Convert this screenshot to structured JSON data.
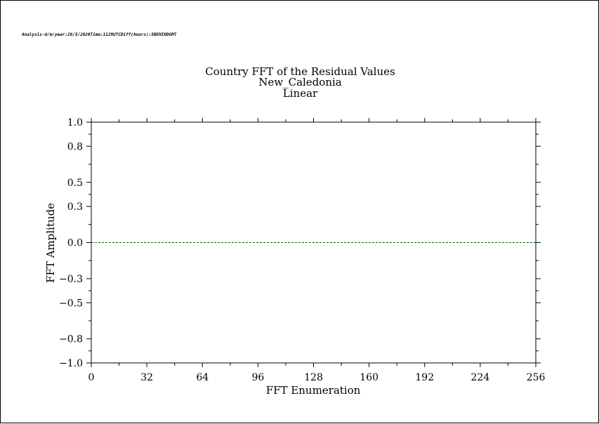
{
  "header_note": "Analysis-d/m/year:26/5/2020Time:1129UTCDiff(hours):5BEHINDGMT",
  "chart_data": {
    "type": "line",
    "title_lines": [
      "Country FFT of the Residual Values",
      "New_Caledonia",
      "Linear"
    ],
    "xlabel": "FFT Enumeration",
    "ylabel": "FFT Amplitude",
    "xlim": [
      0,
      256
    ],
    "ylim": [
      -1.0,
      1.0
    ],
    "x_ticks": [
      0,
      32,
      64,
      96,
      128,
      160,
      192,
      224,
      256
    ],
    "y_ticks": [
      1.0,
      0.8,
      0.5,
      0.3,
      0.0,
      -0.3,
      -0.5,
      -0.8,
      -1.0
    ],
    "y_tick_labels": [
      "1.0",
      "0.8",
      "0.5",
      "0.3",
      "0.0",
      "−0.3",
      "−0.5",
      "−0.8",
      "−1.0"
    ],
    "series": [
      {
        "x": [
          0,
          256
        ],
        "values": [
          0.0,
          0.0
        ],
        "color": "#006400"
      }
    ],
    "grid": false
  }
}
